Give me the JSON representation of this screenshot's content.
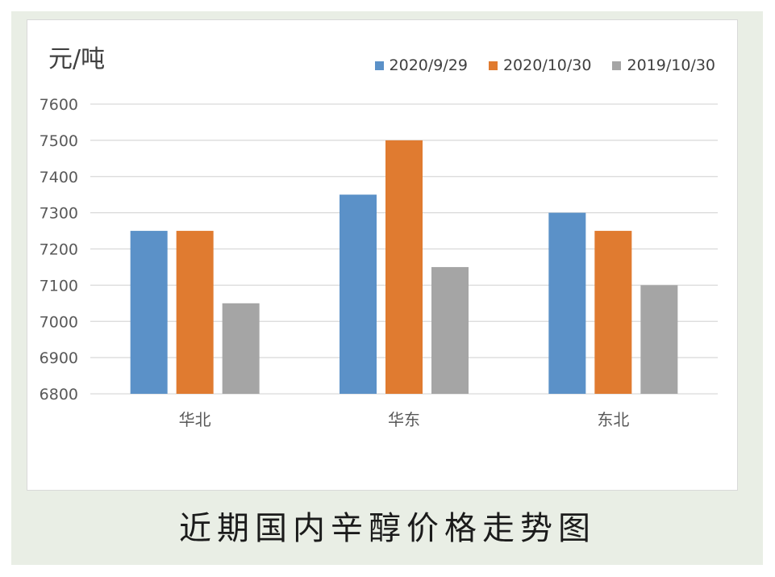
{
  "chart_data": {
    "type": "bar",
    "ylabel": "元/吨",
    "categories": [
      "华北",
      "华东",
      "东北"
    ],
    "series": [
      {
        "name": "2020/9/29",
        "values": [
          7250,
          7350,
          7300
        ],
        "color": "#5b91c8"
      },
      {
        "name": "2020/10/30",
        "values": [
          7250,
          7500,
          7250
        ],
        "color": "#e07b30"
      },
      {
        "name": "2019/10/30",
        "values": [
          7050,
          7150,
          7100
        ],
        "color": "#a5a5a5"
      }
    ],
    "ylim": [
      6800,
      7600
    ],
    "yticks": [
      6800,
      6900,
      7000,
      7100,
      7200,
      7300,
      7400,
      7500,
      7600
    ],
    "grid": true,
    "legend_position": "top-right"
  },
  "caption": "近期国内辛醇价格走势图"
}
